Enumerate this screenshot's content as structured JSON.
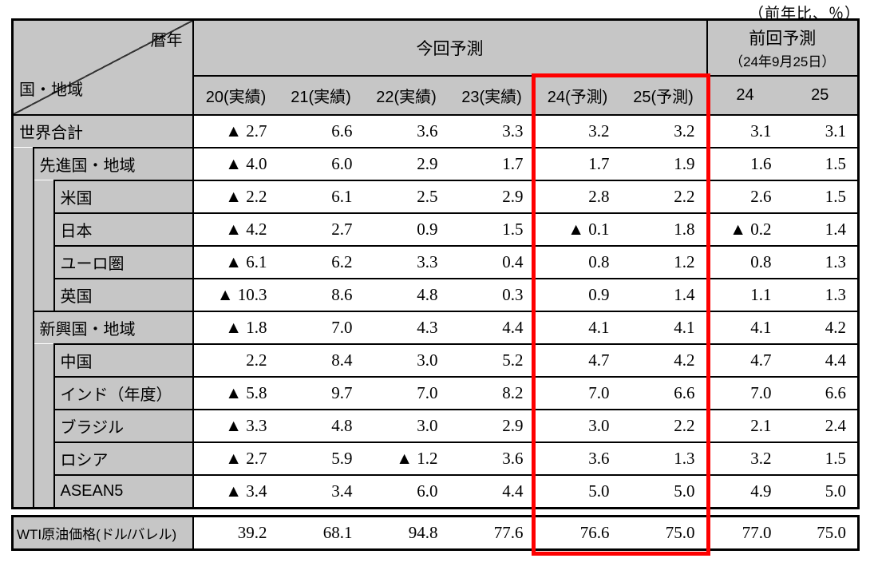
{
  "note": "（前年比、％）",
  "colors": {
    "header_bg": "#c6c6c6",
    "highlight": "#fe0000",
    "border": "#000000"
  },
  "negative_marker": "▲",
  "table": {
    "corner": {
      "col_axis": "暦年",
      "row_axis": "国・地域"
    },
    "groups": {
      "current": "今回予測",
      "previous": "前回予測",
      "previous_sub": "（24年9月25日）"
    },
    "columns": [
      "20(実績)",
      "21(実績)",
      "22(実績)",
      "23(実績)",
      "24(予測)",
      "25(予測)",
      "24",
      "25"
    ],
    "rows": [
      {
        "label": "世界合計",
        "values": [
          "▲ 2.7",
          "6.6",
          "3.6",
          "3.3",
          "3.2",
          "3.2",
          "3.1",
          "3.1"
        ]
      },
      {
        "label": "先進国・地域",
        "values": [
          "▲ 4.0",
          "6.0",
          "2.9",
          "1.7",
          "1.7",
          "1.9",
          "1.6",
          "1.5"
        ]
      },
      {
        "label": "米国",
        "values": [
          "▲ 2.2",
          "6.1",
          "2.5",
          "2.9",
          "2.8",
          "2.2",
          "2.6",
          "1.5"
        ]
      },
      {
        "label": "日本",
        "values": [
          "▲ 4.2",
          "2.7",
          "0.9",
          "1.5",
          "▲ 0.1",
          "1.8",
          "▲ 0.2",
          "1.4"
        ]
      },
      {
        "label": "ユーロ圏",
        "values": [
          "▲ 6.1",
          "6.2",
          "3.3",
          "0.4",
          "0.8",
          "1.2",
          "0.8",
          "1.3"
        ]
      },
      {
        "label": "英国",
        "values": [
          "▲ 10.3",
          "8.6",
          "4.8",
          "0.3",
          "0.9",
          "1.4",
          "1.1",
          "1.3"
        ]
      },
      {
        "label": "新興国・地域",
        "values": [
          "▲ 1.8",
          "7.0",
          "4.3",
          "4.4",
          "4.1",
          "4.1",
          "4.1",
          "4.2"
        ]
      },
      {
        "label": "中国",
        "values": [
          "2.2",
          "8.4",
          "3.0",
          "5.2",
          "4.7",
          "4.2",
          "4.7",
          "4.4"
        ]
      },
      {
        "label": "インド（年度）",
        "values": [
          "▲ 5.8",
          "9.7",
          "7.0",
          "8.2",
          "7.0",
          "6.6",
          "7.0",
          "6.6"
        ]
      },
      {
        "label": "ブラジル",
        "values": [
          "▲ 3.3",
          "4.8",
          "3.0",
          "2.9",
          "3.0",
          "2.2",
          "2.1",
          "2.4"
        ]
      },
      {
        "label": "ロシア",
        "values": [
          "▲ 2.7",
          "5.9",
          "▲ 1.2",
          "3.6",
          "3.6",
          "1.3",
          "3.2",
          "1.5"
        ]
      },
      {
        "label": "ASEAN5",
        "values": [
          "▲ 3.4",
          "3.4",
          "6.0",
          "4.4",
          "5.0",
          "5.0",
          "4.9",
          "5.0"
        ]
      }
    ],
    "wti": {
      "label": "WTI原油価格(ドル/バレル)",
      "values": [
        "39.2",
        "68.1",
        "94.8",
        "77.6",
        "76.6",
        "75.0",
        "77.0",
        "75.0"
      ]
    }
  }
}
